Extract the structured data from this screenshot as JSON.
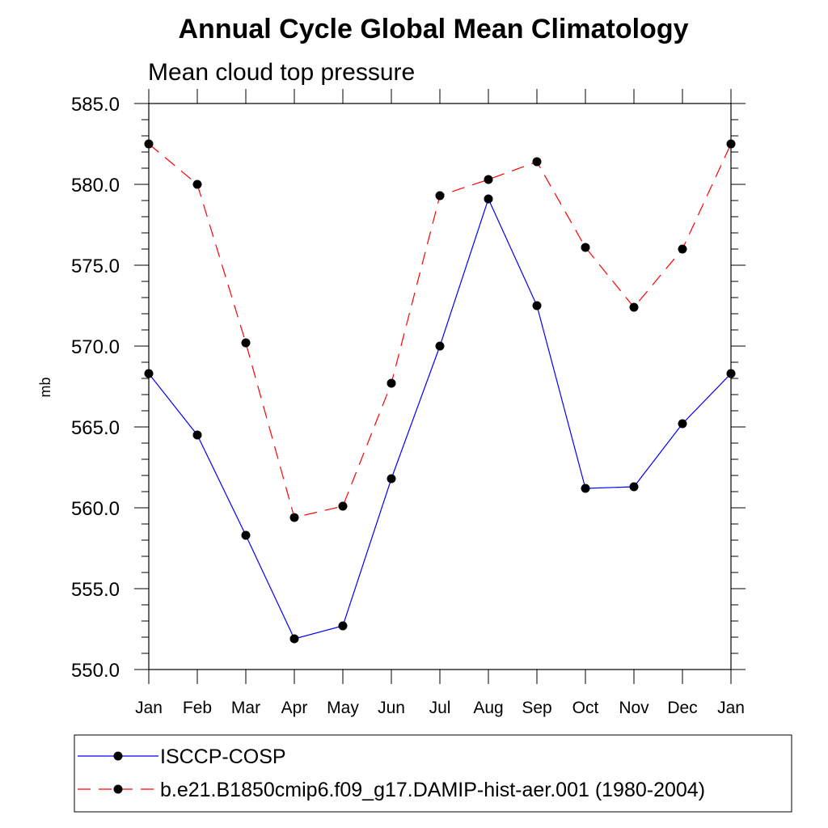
{
  "chart_data": {
    "type": "line",
    "title": "Annual Cycle Global Mean Climatology",
    "subtitle": "Mean cloud top pressure",
    "ylabel": "mb",
    "xlabel": "",
    "categories": [
      "Jan",
      "Feb",
      "Mar",
      "Apr",
      "May",
      "Jun",
      "Jul",
      "Aug",
      "Sep",
      "Oct",
      "Nov",
      "Dec",
      "Jan"
    ],
    "ylim": [
      550.0,
      585.0
    ],
    "yticks": [
      "550.0",
      "555.0",
      "560.0",
      "565.0",
      "570.0",
      "575.0",
      "580.0",
      "585.0"
    ],
    "legend_position": "bottom",
    "series": [
      {
        "name": "ISCCP-COSP",
        "color": "#0000ff",
        "dash": "solid",
        "values": [
          568.3,
          564.5,
          558.3,
          551.9,
          552.7,
          561.8,
          570.0,
          579.1,
          572.5,
          561.2,
          561.3,
          565.2,
          568.3
        ]
      },
      {
        "name": "b.e21.B1850cmip6.f09_g17.DAMIP-hist-aer.001 (1980-2004)",
        "color": "#ff0000",
        "dash": "dashed",
        "values": [
          582.5,
          580.0,
          570.2,
          559.4,
          560.1,
          567.7,
          579.3,
          580.3,
          581.4,
          576.1,
          572.4,
          576.0,
          582.5
        ]
      }
    ]
  }
}
